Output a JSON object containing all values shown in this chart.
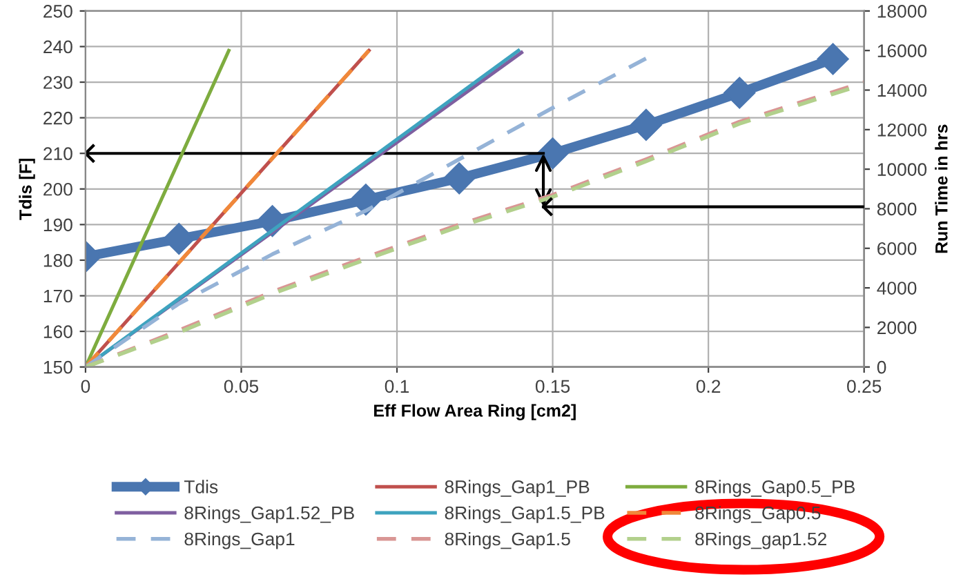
{
  "chart_data": {
    "type": "line",
    "xlabel": "Eff Flow Area Ring [cm2]",
    "ylabel": "Tdis [F]",
    "y2label": "Run Time in hrs",
    "xlim": [
      0,
      0.25
    ],
    "xticks": [
      0,
      0.05,
      0.1,
      0.15,
      0.2,
      0.25
    ],
    "ylim": [
      150,
      250
    ],
    "yticks": [
      150,
      160,
      170,
      180,
      190,
      200,
      210,
      220,
      230,
      240,
      250
    ],
    "y2lim": [
      0,
      18000
    ],
    "y2ticks": [
      0,
      2000,
      4000,
      6000,
      8000,
      10000,
      12000,
      14000,
      16000,
      18000
    ],
    "grid": true,
    "legend": "bottom",
    "series": [
      {
        "name": "Tdis",
        "color": "#4a76b0",
        "marker": "diamond",
        "line_style": "solid",
        "x": [
          0,
          0.03,
          0.06,
          0.09,
          0.12,
          0.15,
          0.18,
          0.21,
          0.24
        ],
        "values": [
          181,
          186,
          191,
          197,
          203,
          210,
          218,
          227,
          236.5
        ]
      },
      {
        "name": "8Rings_Gap1_PB",
        "color": "#c0504d",
        "axis": "y2",
        "line_style": "solid",
        "x": [
          0,
          0.091
        ],
        "values": [
          0,
          16000
        ]
      },
      {
        "name": "8Rings_Gap0.5_PB",
        "color": "#7eac3f",
        "axis": "y2",
        "line_style": "solid",
        "x": [
          0,
          0.046
        ],
        "values": [
          0,
          16000
        ]
      },
      {
        "name": "8Rings_Gap1.52_PB",
        "color": "#7f5fa0",
        "axis": "y2",
        "line_style": "solid",
        "x": [
          0,
          0.14
        ],
        "values": [
          0,
          15900
        ]
      },
      {
        "name": "8Rings_Gap1.5_PB",
        "color": "#3ea3bf",
        "axis": "y2",
        "line_style": "solid",
        "x": [
          0,
          0.139
        ],
        "values": [
          0,
          16000
        ]
      },
      {
        "name": "8Rings_Gap0.5",
        "color": "#f0883a",
        "axis": "y2",
        "line_style": "dashed",
        "x": [
          0,
          0.091
        ],
        "values": [
          0,
          16000
        ]
      },
      {
        "name": "8Rings_Gap1",
        "color": "#95b3d7",
        "axis": "y2",
        "line_style": "dashed",
        "x": [
          0,
          0.03,
          0.06,
          0.09,
          0.12,
          0.15,
          0.18
        ],
        "values": [
          0,
          3200,
          5700,
          7900,
          10500,
          13100,
          15600
        ]
      },
      {
        "name": "8Rings_Gap1.5",
        "color": "#d99694",
        "axis": "y2",
        "line_style": "dashed",
        "x": [
          0,
          0.03,
          0.06,
          0.09,
          0.12,
          0.15,
          0.18,
          0.21,
          0.25
        ],
        "values": [
          0,
          1850,
          3800,
          5550,
          7200,
          8700,
          10500,
          12400,
          14400
        ]
      },
      {
        "name": "8Rings_gap1.52",
        "color": "#b2d08c",
        "axis": "y2",
        "line_style": "dashed",
        "x": [
          0,
          0.03,
          0.06,
          0.09,
          0.12,
          0.15,
          0.18,
          0.21,
          0.25
        ],
        "values": [
          0,
          1750,
          3700,
          5440,
          7100,
          8600,
          10400,
          12300,
          14300
        ]
      },
      {
        "color": "#000000",
        "line_style": "solid",
        "x": [
          0.147,
          0
        ],
        "values": [
          210,
          210
        ]
      },
      {
        "color": "#000000",
        "axis": "y2",
        "line_style": "solid",
        "x": [
          0.25,
          0.147
        ],
        "values": [
          8100,
          8100
        ]
      }
    ]
  }
}
